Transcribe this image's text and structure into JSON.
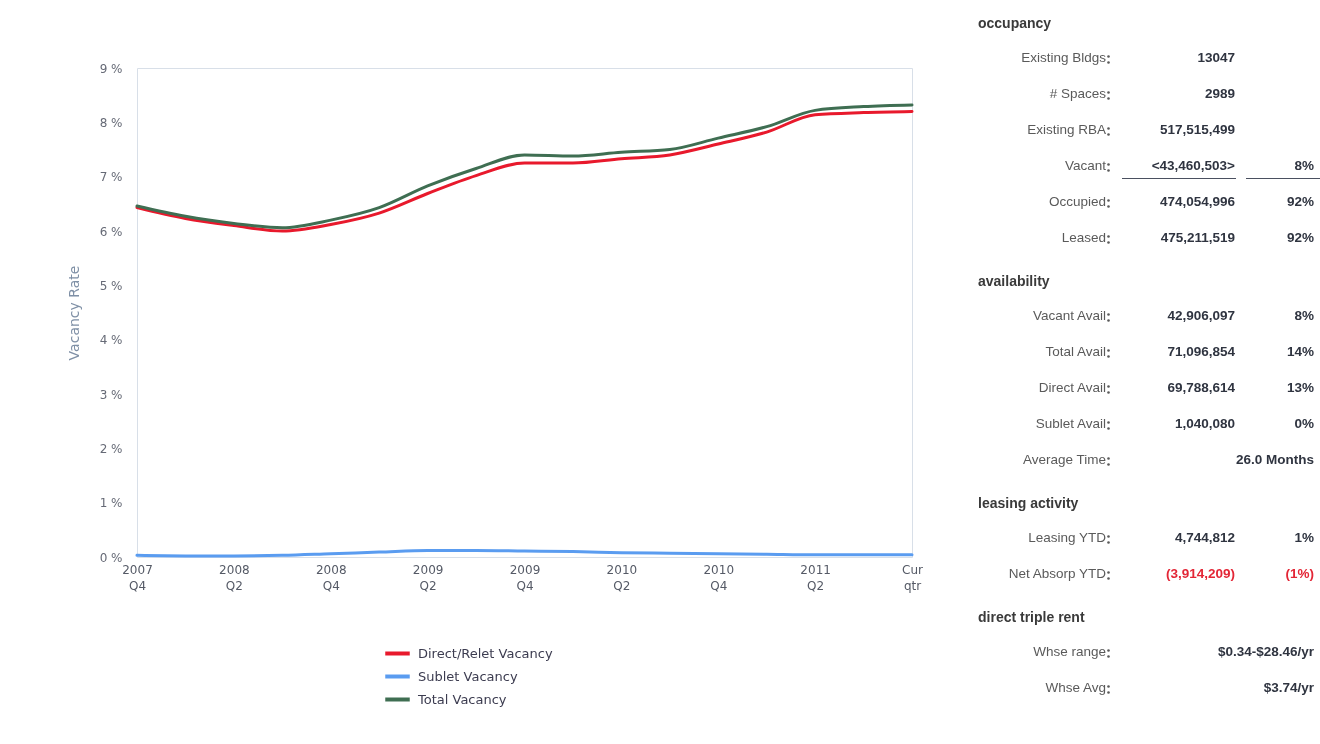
{
  "chart_data": [
    {
      "type": "line",
      "categories": [
        "2007 Q4",
        null,
        "2008 Q2",
        null,
        "2008 Q4",
        null,
        "2009 Q2",
        null,
        "2009 Q4",
        null,
        "2010 Q2",
        null,
        "2010 Q4",
        null,
        "2011 Q2",
        null,
        "Cur qtr"
      ],
      "ylabel": "Vacancy Rate",
      "ylim": [
        0,
        9
      ],
      "yticks": [
        {
          "value": 0,
          "label": "0 %"
        },
        {
          "value": 1,
          "label": "1 %"
        },
        {
          "value": 2,
          "label": "2 %"
        },
        {
          "value": 3,
          "label": "3 %"
        },
        {
          "value": 4,
          "label": "4 %"
        },
        {
          "value": 5,
          "label": "5 %"
        },
        {
          "value": 6,
          "label": "6 %"
        },
        {
          "value": 7,
          "label": "7 %"
        },
        {
          "value": 8,
          "label": "8 %"
        },
        {
          "value": 9,
          "label": "9 %"
        }
      ],
      "grid": false,
      "legend": "bottom",
      "series": [
        {
          "name": "Direct/Relet Vacancy",
          "color": "#e8192c",
          "values": [
            6.43,
            6.23,
            6.1,
            6.0,
            6.12,
            6.33,
            6.69,
            7.02,
            7.25,
            7.25,
            7.33,
            7.4,
            7.6,
            7.82,
            8.14,
            8.18,
            8.2
          ]
        },
        {
          "name": "Sublet Vacancy",
          "color": "#5a9cf0",
          "values": [
            0.03,
            0.02,
            0.02,
            0.03,
            0.06,
            0.09,
            0.12,
            0.12,
            0.11,
            0.1,
            0.08,
            0.07,
            0.06,
            0.05,
            0.04,
            0.04,
            0.04
          ]
        },
        {
          "name": "Total Vacancy",
          "color": "#3f6e52",
          "values": [
            6.46,
            6.27,
            6.14,
            6.06,
            6.2,
            6.43,
            6.83,
            7.15,
            7.4,
            7.38,
            7.45,
            7.5,
            7.71,
            7.92,
            8.22,
            8.29,
            8.32
          ]
        }
      ]
    },
    {
      "type": "other",
      "title": "occupancy",
      "data_labels": true,
      "categories": [
        "Existing Bldgs",
        "# Spaces",
        "Existing RBA",
        "Vacant",
        "Occupied",
        "Leased"
      ],
      "series": [
        {
          "values": [
            13047,
            2989,
            517515499,
            43460503,
            474054996,
            475211519
          ],
          "value_labels": [
            "13047",
            "2989",
            "517,515,499",
            "<43,460,503>",
            "474,054,996",
            "475,211,519"
          ],
          "colors": [
            "#2f3440",
            "#2f3440",
            "#2f3440",
            "#2f3440",
            "#2f3440",
            "#2f3440"
          ]
        },
        {
          "values": [
            null,
            null,
            null,
            8,
            92,
            92
          ],
          "value_labels": [
            null,
            null,
            null,
            "8%",
            "92%",
            "92%"
          ],
          "colors": [
            "#2f3440",
            "#2f3440",
            "#2f3440",
            "#2f3440",
            "#2f3440",
            "#2f3440"
          ]
        }
      ]
    },
    {
      "type": "other",
      "title": "availability",
      "data_labels": true,
      "categories": [
        "Vacant Avail",
        "Total Avail",
        "Direct Avail",
        "Sublet Avail",
        "Average Time"
      ],
      "series": [
        {
          "values": [
            42906097,
            71096854,
            69788614,
            1040080,
            null
          ],
          "value_labels": [
            "42,906,097",
            "71,096,854",
            "69,788,614",
            "1,040,080",
            null
          ],
          "colors": [
            "#2f3440",
            "#2f3440",
            "#2f3440",
            "#2f3440",
            "#2f3440"
          ]
        },
        {
          "values": [
            8,
            14,
            13,
            0,
            26.0
          ],
          "value_labels": [
            "8%",
            "14%",
            "13%",
            "0%",
            "26.0 Months"
          ],
          "colors": [
            "#2f3440",
            "#2f3440",
            "#2f3440",
            "#2f3440",
            "#2f3440"
          ]
        }
      ]
    },
    {
      "type": "other",
      "title": "leasing activity",
      "data_labels": true,
      "categories": [
        "Leasing YTD",
        "Net Absorp YTD"
      ],
      "series": [
        {
          "values": [
            4744812,
            -3914209
          ],
          "value_labels": [
            "4,744,812",
            "(3,914,209)"
          ],
          "colors": [
            "#2f3440",
            "#e32636"
          ]
        },
        {
          "values": [
            1,
            -1
          ],
          "value_labels": [
            "1%",
            "(1%)"
          ],
          "colors": [
            "#2f3440",
            "#e32636"
          ]
        }
      ]
    },
    {
      "type": "other",
      "title": "direct triple rent",
      "data_labels": true,
      "categories": [
        "Whse range",
        "Whse Avg"
      ],
      "series": [
        {
          "values": [
            null,
            null
          ],
          "value_labels": [
            null,
            null
          ],
          "colors": [
            "#2f3440",
            "#2f3440"
          ]
        },
        {
          "values": [
            null,
            3.74
          ],
          "value_labels": [
            "$0.34-$28.46/yr",
            "$3.74/yr"
          ],
          "colors": [
            "#2f3440",
            "#2f3440"
          ]
        }
      ]
    }
  ]
}
